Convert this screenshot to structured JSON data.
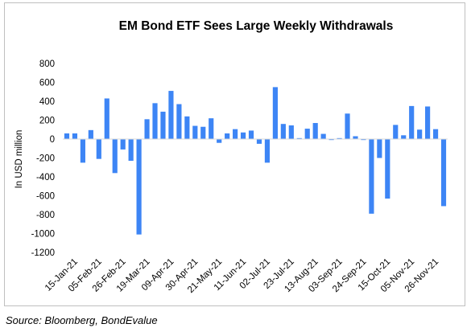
{
  "chart_data": {
    "type": "bar",
    "title": "EM Bond ETF Sees Large Weekly Withdrawals",
    "ylabel": "In USD million",
    "xlabel": "",
    "ylim": [
      -1200,
      800
    ],
    "yticks": [
      800,
      600,
      400,
      200,
      0,
      -200,
      -400,
      -600,
      -800,
      -1000,
      -1200
    ],
    "grid": false,
    "legend": "none",
    "bar_color": "#3d85f5",
    "x_tick_labels": [
      "15-Jan-21",
      "05-Feb-21",
      "26-Feb-21",
      "19-Mar-21",
      "09-Apr-21",
      "30-Apr-21",
      "21-May-21",
      "11-Jun-21",
      "02-Jul-21",
      "23-Jul-21",
      "13-Aug-21",
      "03-Sep-21",
      "24-Sep-21",
      "15-Oct-21",
      "05-Nov-21",
      "26-Nov-21"
    ],
    "x_tick_start_index": 1,
    "x_tick_step": 3,
    "values": [
      60,
      60,
      -250,
      95,
      -210,
      430,
      -360,
      -110,
      -230,
      -1010,
      210,
      380,
      290,
      510,
      370,
      240,
      140,
      130,
      220,
      -40,
      60,
      105,
      70,
      90,
      -50,
      -250,
      550,
      160,
      145,
      10,
      110,
      170,
      55,
      -10,
      10,
      270,
      30,
      -10,
      -790,
      -200,
      -630,
      150,
      40,
      350,
      100,
      345,
      105,
      -710
    ]
  },
  "source": "Source: Bloomberg, BondEvalue"
}
